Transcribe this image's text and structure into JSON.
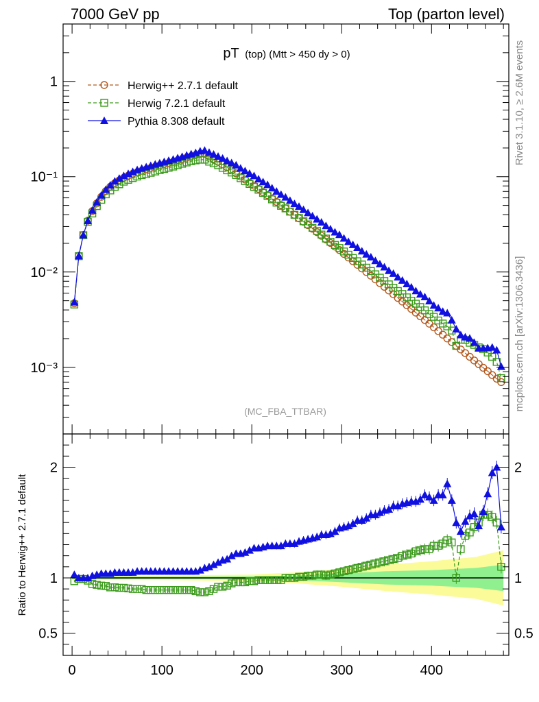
{
  "header": {
    "left": "7000 GeV pp",
    "right": "Top (parton level)"
  },
  "side_labels": {
    "rivet": "Rivet 3.1.10, ≥ 2.6M events",
    "mcplots": "mcplots.cern.ch [arXiv:1306.3436]"
  },
  "title": {
    "main": "pT",
    "sub": "(top) (Mtt > 450 dy > 0)"
  },
  "watermark": "(MC_FBA_TTBAR)",
  "chart_data": [
    {
      "type": "line",
      "panel": "main",
      "yscale": "log",
      "xlim": [
        -10,
        486
      ],
      "ylim": [
        0.0002,
        4
      ],
      "y_ticks": [
        {
          "value": 1,
          "label": "1"
        },
        {
          "value": 0.1,
          "label": "10⁻¹"
        },
        {
          "value": 0.01,
          "label": "10⁻²"
        },
        {
          "value": 0.001,
          "label": "10⁻³"
        }
      ],
      "legend_position": "top-left",
      "x": [
        2.5,
        7.5,
        12.5,
        17.5,
        22.5,
        27.5,
        32.5,
        37.5,
        42.5,
        47.5,
        52.5,
        57.5,
        62.5,
        67.5,
        72.5,
        77.5,
        82.5,
        87.5,
        92.5,
        97.5,
        102.5,
        107.5,
        112.5,
        117.5,
        122.5,
        127.5,
        132.5,
        137.5,
        142.5,
        147.5,
        152.5,
        157.5,
        162.5,
        167.5,
        172.5,
        177.5,
        182.5,
        187.5,
        192.5,
        197.5,
        202.5,
        207.5,
        212.5,
        217.5,
        222.5,
        227.5,
        232.5,
        237.5,
        242.5,
        247.5,
        252.5,
        257.5,
        262.5,
        267.5,
        272.5,
        277.5,
        282.5,
        287.5,
        292.5,
        297.5,
        302.5,
        307.5,
        312.5,
        317.5,
        322.5,
        327.5,
        332.5,
        337.5,
        342.5,
        347.5,
        352.5,
        357.5,
        362.5,
        367.5,
        372.5,
        377.5,
        382.5,
        387.5,
        392.5,
        397.5,
        402.5,
        407.5,
        412.5,
        417.5,
        422.5,
        427.5,
        432.5,
        437.5,
        442.5,
        447.5,
        452.5,
        457.5,
        462.5,
        467.5,
        472.5,
        477.5
      ],
      "series": [
        {
          "name": "Herwig++ 2.7.1 default",
          "color": "#b35a1f",
          "marker": "circle-open",
          "line": "dashed",
          "values": [
            0.0047,
            0.0148,
            0.0245,
            0.0345,
            0.0435,
            0.0525,
            0.0615,
            0.0705,
            0.0785,
            0.0855,
            0.0915,
            0.0975,
            0.1025,
            0.1075,
            0.1115,
            0.1155,
            0.1195,
            0.1235,
            0.1275,
            0.1315,
            0.1355,
            0.1395,
            0.1435,
            0.1485,
            0.1535,
            0.1585,
            0.1635,
            0.1685,
            0.1735,
            0.1735,
            0.1635,
            0.1535,
            0.1435,
            0.1345,
            0.1255,
            0.1165,
            0.1085,
            0.1005,
            0.0935,
            0.0865,
            0.0805,
            0.0745,
            0.069,
            0.064,
            0.059,
            0.0545,
            0.0505,
            0.0465,
            0.043,
            0.0398,
            0.0366,
            0.0337,
            0.031,
            0.0285,
            0.0262,
            0.024,
            0.022,
            0.0202,
            0.0185,
            0.017,
            0.0155,
            0.0142,
            0.013,
            0.0119,
            0.0109,
            0.01,
            0.00915,
            0.00837,
            0.00765,
            0.007,
            0.0064,
            0.00585,
            0.00535,
            0.0049,
            0.00448,
            0.0041,
            0.00375,
            0.00343,
            0.00314,
            0.00287,
            0.00263,
            0.0024,
            0.0022,
            0.00201,
            0.00184,
            0.00168,
            0.00154,
            0.00141,
            0.00129,
            0.00118,
            0.00108,
            0.00099,
            0.00091,
            0.00083,
            0.00076,
            0.0007
          ]
        },
        {
          "name": "Herwig 7.2.1 default",
          "color": "#3a9a1a",
          "marker": "square-open",
          "line": "dashed",
          "values": [
            0.00456,
            0.01466,
            0.02434,
            0.03363,
            0.04111,
            0.04919,
            0.0572,
            0.06533,
            0.07175,
            0.07824,
            0.08326,
            0.08873,
            0.09276,
            0.09675,
            0.10035,
            0.10395,
            0.10635,
            0.10991,
            0.11348,
            0.11704,
            0.12059,
            0.12415,
            0.12771,
            0.13216,
            0.13661,
            0.14107,
            0.14552,
            0.14828,
            0.15094,
            0.15094,
            0.14386,
            0.13815,
            0.13202,
            0.12374,
            0.11671,
            0.11067,
            0.10416,
            0.09648,
            0.08976,
            0.08391,
            0.07809,
            0.07301,
            0.06762,
            0.06272,
            0.05782,
            0.05341,
            0.04949,
            0.0465,
            0.043,
            0.0398,
            0.03697,
            0.03404,
            0.03162,
            0.02907,
            0.02698,
            0.02472,
            0.02244,
            0.02078,
            0.01924,
            0.01785,
            0.01643,
            0.01519,
            0.01404,
            0.01297,
            0.01199,
            0.0111,
            0.01025,
            0.00946,
            0.00872,
            0.00805,
            0.00742,
            0.00684,
            0.00632,
            0.00588,
            0.00542,
            0.005,
            0.00465,
            0.00429,
            0.00396,
            0.00362,
            0.00339,
            0.0031,
            0.00288,
            0.00269,
            0.00243,
            0.00168,
            0.00195,
            0.00194,
            0.00181,
            0.00172,
            0.00162,
            0.00155,
            0.00143,
            0.00129,
            0.00114,
            0.00077
          ]
        },
        {
          "name": "Pythia 8.308 default",
          "color": "#1010e0",
          "marker": "triangle-filled",
          "line": "solid",
          "values": [
            0.00484,
            0.0148,
            0.0245,
            0.0345,
            0.04437,
            0.05408,
            0.06396,
            0.07332,
            0.08164,
            0.08978,
            0.09608,
            0.10238,
            0.10763,
            0.11288,
            0.11819,
            0.12243,
            0.12667,
            0.13091,
            0.13515,
            0.13939,
            0.14363,
            0.14787,
            0.15211,
            0.15741,
            0.16271,
            0.16801,
            0.17331,
            0.17866,
            0.18565,
            0.18913,
            0.17985,
            0.17195,
            0.16359,
            0.15601,
            0.14683,
            0.13981,
            0.13237,
            0.12261,
            0.11501,
            0.10813,
            0.10223,
            0.09462,
            0.08832,
            0.08256,
            0.07611,
            0.0703,
            0.06515,
            0.06092,
            0.05633,
            0.05214,
            0.04879,
            0.04515,
            0.04185,
            0.03876,
            0.0359,
            0.03334,
            0.03058,
            0.02828,
            0.02627,
            0.02465,
            0.02263,
            0.02087,
            0.01937,
            0.01808,
            0.01658,
            0.0154,
            0.01437,
            0.01316,
            0.01216,
            0.01127,
            0.01035,
            0.00965,
            0.00883,
            0.00818,
            0.00752,
            0.00693,
            0.00634,
            0.00587,
            0.00549,
            0.00497,
            0.00447,
            0.00419,
            0.00386,
            0.00372,
            0.00313,
            0.00252,
            0.00219,
            0.00208,
            0.00202,
            0.00182,
            0.00159,
            0.00159,
            0.0016,
            0.00162,
            0.00152,
            0.00102
          ]
        }
      ]
    },
    {
      "type": "line",
      "panel": "ratio",
      "ylabel": "Ratio to Herwig++ 2.7.1 default",
      "xlim": [
        -10,
        486
      ],
      "ylim": [
        0.3,
        2.3
      ],
      "y_ticks": [
        {
          "value": 2,
          "label": "2"
        },
        {
          "value": 1,
          "label": "1"
        },
        {
          "value": 0.5,
          "label": "0.5"
        }
      ],
      "x_ticks": [
        {
          "value": 0,
          "label": "0"
        },
        {
          "value": 100,
          "label": "100"
        },
        {
          "value": 200,
          "label": "200"
        },
        {
          "value": 300,
          "label": "300"
        },
        {
          "value": 400,
          "label": "400"
        }
      ],
      "band": {
        "x": [
          0,
          100,
          200,
          250,
          300,
          350,
          400,
          450,
          480
        ],
        "green_half_width": [
          0.01,
          0.01,
          0.015,
          0.02,
          0.04,
          0.06,
          0.07,
          0.09,
          0.12
        ],
        "yellow_half_width": [
          0.02,
          0.02,
          0.03,
          0.05,
          0.08,
          0.12,
          0.15,
          0.19,
          0.25
        ]
      },
      "series": [
        {
          "name": "Herwig 7.2.1 default",
          "color": "#3a9a1a",
          "marker": "square-open",
          "values": [
            0.97,
            0.99,
            0.99,
            0.975,
            0.945,
            0.937,
            0.93,
            0.927,
            0.914,
            0.915,
            0.91,
            0.91,
            0.905,
            0.9,
            0.9,
            0.9,
            0.89,
            0.89,
            0.89,
            0.89,
            0.89,
            0.89,
            0.89,
            0.89,
            0.89,
            0.89,
            0.89,
            0.88,
            0.87,
            0.87,
            0.88,
            0.9,
            0.92,
            0.92,
            0.93,
            0.95,
            0.96,
            0.96,
            0.96,
            0.97,
            0.97,
            0.98,
            0.98,
            0.98,
            0.98,
            0.98,
            0.98,
            1.0,
            1.0,
            1.0,
            1.01,
            1.01,
            1.02,
            1.02,
            1.03,
            1.03,
            1.02,
            1.03,
            1.04,
            1.05,
            1.06,
            1.07,
            1.08,
            1.09,
            1.1,
            1.11,
            1.12,
            1.13,
            1.14,
            1.15,
            1.16,
            1.17,
            1.18,
            1.2,
            1.21,
            1.22,
            1.24,
            1.25,
            1.26,
            1.26,
            1.29,
            1.29,
            1.31,
            1.34,
            1.32,
            1.0,
            1.26,
            1.38,
            1.41,
            1.46,
            1.5,
            1.57,
            1.57,
            1.55,
            1.5,
            1.1
          ]
        },
        {
          "name": "Pythia 8.308 default",
          "color": "#1010e0",
          "marker": "triangle-filled",
          "values": [
            1.03,
            1.0,
            1.0,
            1.0,
            1.02,
            1.03,
            1.04,
            1.04,
            1.04,
            1.05,
            1.05,
            1.05,
            1.05,
            1.05,
            1.06,
            1.06,
            1.06,
            1.06,
            1.06,
            1.06,
            1.06,
            1.06,
            1.06,
            1.06,
            1.06,
            1.06,
            1.06,
            1.06,
            1.07,
            1.09,
            1.1,
            1.12,
            1.14,
            1.16,
            1.17,
            1.2,
            1.22,
            1.22,
            1.23,
            1.25,
            1.27,
            1.27,
            1.28,
            1.29,
            1.29,
            1.29,
            1.29,
            1.31,
            1.31,
            1.31,
            1.33,
            1.34,
            1.35,
            1.36,
            1.37,
            1.39,
            1.39,
            1.4,
            1.42,
            1.45,
            1.46,
            1.47,
            1.49,
            1.52,
            1.52,
            1.54,
            1.57,
            1.57,
            1.59,
            1.61,
            1.62,
            1.65,
            1.65,
            1.67,
            1.68,
            1.69,
            1.69,
            1.71,
            1.75,
            1.73,
            1.7,
            1.75,
            1.75,
            1.85,
            1.7,
            1.5,
            1.42,
            1.51,
            1.56,
            1.58,
            1.47,
            1.6,
            1.76,
            1.95,
            2.0,
            1.46
          ]
        }
      ]
    }
  ]
}
